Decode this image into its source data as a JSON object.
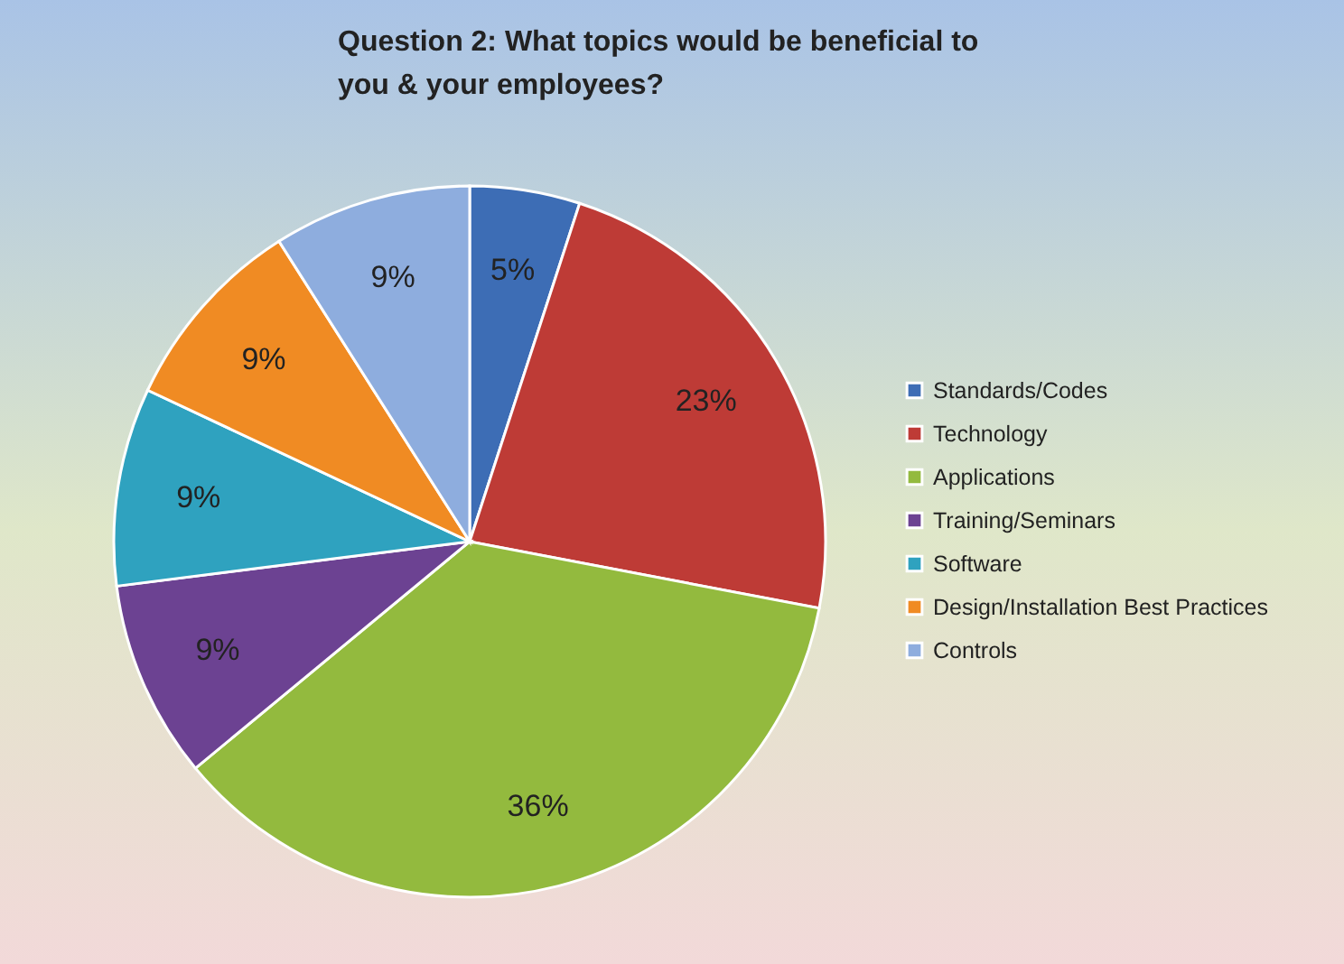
{
  "chart_data": {
    "type": "pie",
    "title": "Question 2:  What topics would be beneficial to you & your employees?",
    "categories": [
      "Standards/Codes",
      "Technology",
      "Applications",
      "Training/Seminars",
      "Software",
      "Design/Installation Best Practices",
      "Controls"
    ],
    "values": [
      5,
      23,
      36,
      9,
      9,
      9,
      9
    ],
    "value_labels": [
      "5%",
      "23%",
      "36%",
      "9%",
      "9%",
      "9%",
      "9%"
    ],
    "colors": [
      "#3d6db5",
      "#be3b36",
      "#93ba3e",
      "#6c4292",
      "#2fa2bf",
      "#f08b23",
      "#8eadde"
    ],
    "legend": "right"
  }
}
